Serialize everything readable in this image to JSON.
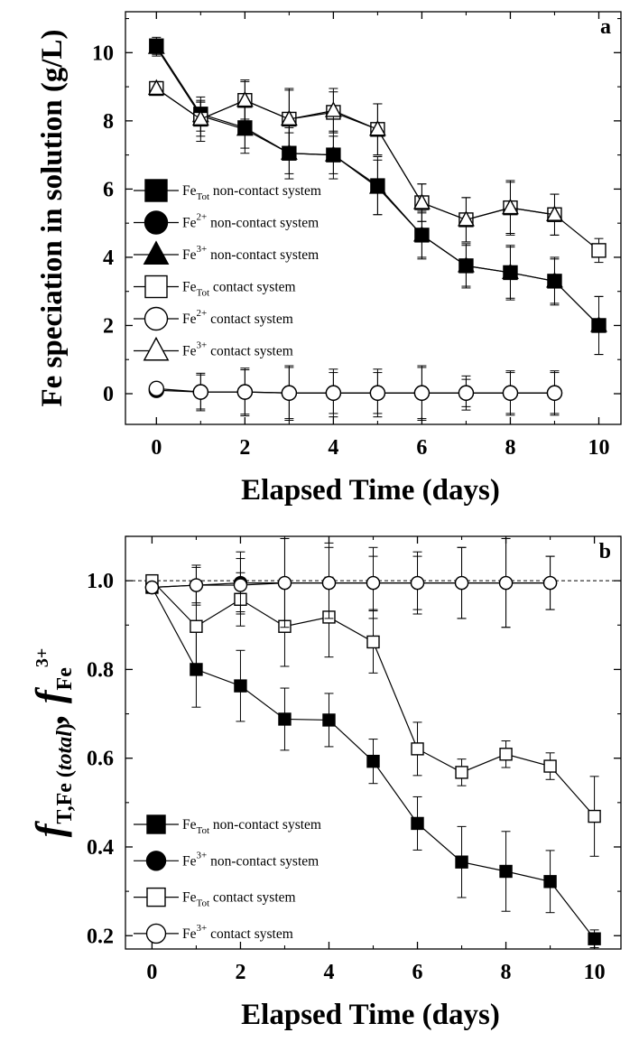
{
  "chart_data": [
    {
      "type": "line",
      "panel_label": "a",
      "xlabel": "Elapsed Time (days)",
      "ylabel": "Fe speciation in solution (g/L)",
      "xlim": [
        -0.7,
        10.5
      ],
      "ylim": [
        -0.9,
        11.2
      ],
      "xticks": [
        0,
        2,
        4,
        6,
        8,
        10
      ],
      "yticks": [
        0,
        2,
        4,
        6,
        8,
        10
      ],
      "grid": false,
      "legend_position": "left",
      "series": [
        {
          "label_base": "Fe",
          "label_sub": "Tot",
          "label_sup": "",
          "label_rest": " non-contact  system",
          "marker": "square",
          "filled": true,
          "x": [
            0,
            1,
            2,
            3,
            4,
            5,
            6,
            7,
            8,
            9,
            10
          ],
          "y": [
            10.2,
            8.2,
            7.8,
            7.05,
            7.0,
            6.1,
            4.65,
            3.75,
            3.55,
            3.3,
            2.0
          ],
          "err": [
            0.25,
            0.35,
            0.6,
            0.6,
            0.55,
            0.85,
            0.65,
            0.6,
            0.75,
            0.65,
            0.85
          ]
        },
        {
          "label_base": "Fe",
          "label_sub": "",
          "label_sup": "2+",
          "label_rest": " non-contact system",
          "marker": "circle",
          "filled": true,
          "x": [
            0,
            1,
            2,
            3,
            4,
            5,
            6,
            7,
            8,
            9
          ],
          "y": [
            0.1,
            0.05,
            0.05,
            0.02,
            0.02,
            0.02,
            0.02,
            0.02,
            0.02,
            0.02
          ],
          "err": [
            0.1,
            0.55,
            0.7,
            0.75,
            0.6,
            0.6,
            0.8,
            0.4,
            0.6,
            0.6
          ]
        },
        {
          "label_base": "Fe",
          "label_sub": "",
          "label_sup": "3+",
          "label_rest": " non-contact system",
          "marker": "triangle",
          "filled": true,
          "x": [
            0,
            1,
            2,
            3,
            4,
            5,
            6,
            7,
            8,
            9,
            10
          ],
          "y": [
            10.15,
            8.15,
            7.75,
            7.05,
            7.0,
            6.05,
            4.65,
            3.75,
            3.55,
            3.3,
            2.0
          ],
          "err": [
            0.25,
            0.45,
            0.7,
            0.75,
            0.7,
            0.8,
            0.7,
            0.65,
            0.8,
            0.7,
            0.85
          ]
        },
        {
          "label_base": "Fe",
          "label_sub": "Tot",
          "label_sup": "",
          "label_rest": " contact system",
          "marker": "square",
          "filled": false,
          "x": [
            0,
            1,
            2,
            3,
            4,
            5,
            6,
            7,
            8,
            9,
            10
          ],
          "y": [
            8.95,
            8.05,
            8.6,
            8.05,
            8.25,
            7.75,
            5.6,
            5.1,
            5.45,
            5.25,
            4.2
          ],
          "err": [
            0.2,
            0.5,
            0.55,
            0.9,
            0.6,
            0.75,
            0.55,
            0.65,
            0.75,
            0.6,
            0.35
          ]
        },
        {
          "label_base": "Fe",
          "label_sub": "",
          "label_sup": "2+",
          "label_rest": " contact system",
          "marker": "circle",
          "filled": false,
          "x": [
            0,
            1,
            2,
            3,
            4,
            5,
            6,
            7,
            8,
            9
          ],
          "y": [
            0.15,
            0.05,
            0.05,
            0.02,
            0.02,
            0.02,
            0.02,
            0.02,
            0.02,
            0.02
          ],
          "err": [
            0.1,
            0.5,
            0.65,
            0.8,
            0.7,
            0.7,
            0.75,
            0.5,
            0.65,
            0.65
          ]
        },
        {
          "label_base": "Fe",
          "label_sub": "",
          "label_sup": "3+",
          "label_rest": " contact system",
          "marker": "triangle",
          "filled": false,
          "x": [
            0,
            1,
            2,
            3,
            4,
            5,
            6,
            7,
            8,
            9
          ],
          "y": [
            8.95,
            8.05,
            8.6,
            8.05,
            8.3,
            7.75,
            5.6,
            5.1,
            5.45,
            5.25
          ],
          "err": [
            0.2,
            0.65,
            0.6,
            0.85,
            0.65,
            0.75,
            0.55,
            0.65,
            0.8,
            0.6
          ]
        }
      ]
    },
    {
      "type": "line",
      "panel_label": "b",
      "xlabel": "Elapsed Time (days)",
      "ylabel_parts": [
        "f",
        "T,Fe (",
        "total",
        ")",
        ", f",
        "Fe",
        "3+"
      ],
      "xlim": [
        -0.6,
        10.6
      ],
      "ylim": [
        0.17,
        1.1
      ],
      "xticks": [
        0,
        2,
        4,
        6,
        8,
        10
      ],
      "yticks": [
        0.2,
        0.4,
        0.6,
        0.8,
        1.0
      ],
      "ytick_labels": [
        "0.2",
        "0.4",
        "0.6",
        "0.8",
        "1.0"
      ],
      "reference_line": 1.0,
      "grid": false,
      "legend_position": "bottom-left",
      "series": [
        {
          "label_base": "Fe",
          "label_sub": "Tot",
          "label_sup": "",
          "label_rest": " non-contact system",
          "marker": "square",
          "filled": true,
          "x": [
            0,
            1,
            2,
            3,
            4,
            5,
            6,
            7,
            8,
            9,
            10
          ],
          "y": [
            0.985,
            0.8,
            0.763,
            0.688,
            0.686,
            0.593,
            0.453,
            0.366,
            0.345,
            0.322,
            0.193
          ],
          "err": [
            0.01,
            0.085,
            0.08,
            0.07,
            0.06,
            0.05,
            0.06,
            0.08,
            0.09,
            0.07,
            0.02
          ]
        },
        {
          "label_base": "Fe",
          "label_sub": "",
          "label_sup": "3+",
          "label_rest": " non-contact system",
          "marker": "circle",
          "filled": true,
          "x": [
            0,
            1,
            2,
            3,
            4,
            5,
            6,
            7,
            8,
            9
          ],
          "y": [
            0.985,
            0.99,
            0.995,
            0.995,
            0.995,
            0.995,
            0.995,
            0.995,
            0.995,
            0.995
          ],
          "err": [
            0.01,
            0.04,
            0.07,
            0.1,
            0.09,
            0.08,
            0.07,
            0.08,
            0.1,
            0.06
          ]
        },
        {
          "label_base": "Fe",
          "label_sub": "Tot",
          "label_sup": "",
          "label_rest": " contact system",
          "marker": "square",
          "filled": false,
          "x": [
            0,
            1,
            2,
            3,
            4,
            5,
            6,
            7,
            8,
            9,
            10
          ],
          "y": [
            1.0,
            0.897,
            0.958,
            0.897,
            0.918,
            0.862,
            0.621,
            0.568,
            0.609,
            0.582,
            0.469
          ],
          "err": [
            0.01,
            0.09,
            0.06,
            0.09,
            0.09,
            0.07,
            0.06,
            0.03,
            0.03,
            0.03,
            0.09
          ]
        },
        {
          "label_base": "Fe",
          "label_sub": "",
          "label_sup": "3+",
          "label_rest": " contact system",
          "marker": "circle",
          "filled": false,
          "x": [
            0,
            1,
            2,
            3,
            4,
            5,
            6,
            7,
            8,
            9
          ],
          "y": [
            0.985,
            0.99,
            0.99,
            0.995,
            0.995,
            0.995,
            0.995,
            0.995,
            0.995,
            0.995
          ],
          "err": [
            0.01,
            0.045,
            0.06,
            0.1,
            0.08,
            0.06,
            0.06,
            0.08,
            0.1,
            0.06
          ]
        }
      ]
    }
  ]
}
